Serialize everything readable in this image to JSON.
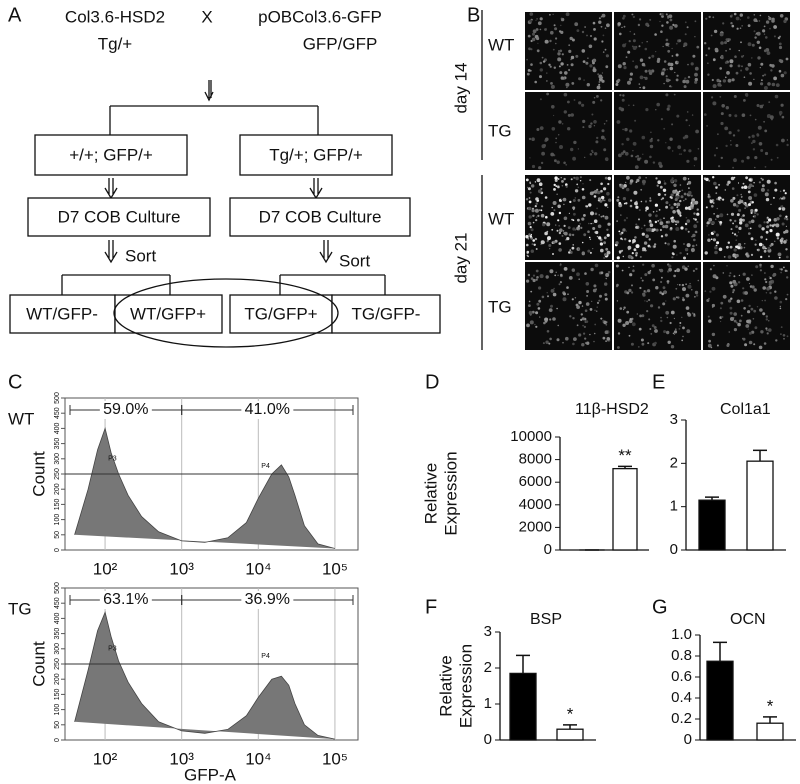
{
  "panel_a": {
    "label": "A",
    "parent1": [
      "Col3.6-HSD2",
      "Tg/+"
    ],
    "cross": "X",
    "parent2": [
      "pOBCol3.6-GFP",
      "GFP/GFP"
    ],
    "genotypes": [
      "+/+; GFP/+",
      "Tg/+; GFP/+"
    ],
    "culture": [
      "D7 COB Culture",
      "D7 COB Culture"
    ],
    "step": [
      "Sort",
      "Sort"
    ],
    "fractions": [
      "WT/GFP-",
      "WT/GFP+",
      "TG/GFP+",
      "TG/GFP-"
    ]
  },
  "panel_b": {
    "label": "B",
    "timepoints": [
      "day 14",
      "day 21"
    ],
    "rows": [
      "WT",
      "TG",
      "WT",
      "TG"
    ]
  },
  "chart_data": [
    {
      "type": "area",
      "panel": "C",
      "sample": "WT",
      "ylabel": "Count",
      "color": "#777777",
      "xscale": "log",
      "x": [
        40,
        60,
        80,
        100,
        120,
        150,
        200,
        300,
        500,
        1000,
        2000,
        4000,
        7000,
        10000,
        15000,
        20000,
        25000,
        30000,
        40000,
        60000,
        100000
      ],
      "values": [
        50,
        200,
        330,
        400,
        320,
        250,
        180,
        110,
        60,
        30,
        25,
        40,
        90,
        170,
        250,
        280,
        240,
        180,
        80,
        20,
        5
      ],
      "xlim": [
        30,
        200000
      ],
      "xticks": [
        {
          "value": 100,
          "label": "10²"
        },
        {
          "value": 1000,
          "label": "10³"
        },
        {
          "value": 10000,
          "label": "10⁴"
        },
        {
          "value": 100000,
          "label": "10⁵"
        }
      ],
      "ylim": [
        0,
        500
      ],
      "yticks": [
        0,
        50,
        100,
        150,
        200,
        250,
        300,
        350,
        400,
        450,
        500
      ],
      "gates": {
        "values": [
          59.0,
          41.0
        ],
        "value_labels": [
          "59.0%",
          "41.0%"
        ]
      },
      "gate_names": [
        "P3",
        "P4"
      ]
    },
    {
      "type": "area",
      "sample": "TG",
      "ylabel": "Count",
      "xlabel": "GFP-A",
      "color": "#777777",
      "xscale": "log",
      "x": [
        40,
        60,
        80,
        100,
        120,
        150,
        200,
        300,
        500,
        1000,
        2000,
        4000,
        7000,
        10000,
        15000,
        20000,
        25000,
        30000,
        40000,
        60000,
        100000
      ],
      "values": [
        60,
        230,
        360,
        420,
        340,
        260,
        190,
        120,
        60,
        30,
        22,
        35,
        80,
        140,
        200,
        210,
        180,
        120,
        50,
        15,
        3
      ],
      "xlim": [
        30,
        200000
      ],
      "xticks": [
        {
          "value": 100,
          "label": "10²"
        },
        {
          "value": 1000,
          "label": "10³"
        },
        {
          "value": 10000,
          "label": "10⁴"
        },
        {
          "value": 100000,
          "label": "10⁵"
        }
      ],
      "ylim": [
        0,
        500
      ],
      "yticks": [
        0,
        50,
        100,
        150,
        200,
        250,
        300,
        350,
        400,
        450,
        500
      ],
      "gates": {
        "values": [
          63.1,
          36.9
        ],
        "value_labels": [
          "63.1%",
          "36.9%"
        ]
      },
      "gate_names": [
        "P3",
        "P4"
      ]
    },
    {
      "type": "bar",
      "panel": "D",
      "title": "11β-HSD2",
      "ylabel": [
        "Relative",
        "Expression"
      ],
      "categories": [
        null,
        null
      ],
      "values": [
        1,
        7200
      ],
      "errors": [
        0,
        200
      ],
      "colors": [
        "#000000",
        "#ffffff"
      ],
      "significance": [
        null,
        "**"
      ],
      "ylim": [
        0,
        10000
      ],
      "yticks": [
        0,
        2000,
        4000,
        6000,
        8000,
        10000
      ]
    },
    {
      "type": "bar",
      "panel": "E",
      "title": "Col1a1",
      "categories": [
        null,
        null
      ],
      "values": [
        1.15,
        2.05
      ],
      "errors": [
        0.07,
        0.25
      ],
      "colors": [
        "#000000",
        "#ffffff"
      ],
      "ylim": [
        0,
        3
      ],
      "yticks": [
        0,
        1,
        2,
        3
      ]
    },
    {
      "type": "bar",
      "panel": "F",
      "title": "BSP",
      "ylabel": [
        "Relative",
        "Expression"
      ],
      "categories": [
        null,
        null
      ],
      "values": [
        1.85,
        0.3
      ],
      "errors": [
        0.5,
        0.12
      ],
      "colors": [
        "#000000",
        "#ffffff"
      ],
      "significance": [
        null,
        "*"
      ],
      "ylim": [
        0,
        3
      ],
      "yticks": [
        0,
        1,
        2,
        3
      ]
    },
    {
      "type": "bar",
      "panel": "G",
      "title": "OCN",
      "categories": [
        null,
        null
      ],
      "values": [
        0.75,
        0.16
      ],
      "errors": [
        0.18,
        0.06
      ],
      "colors": [
        "#000000",
        "#ffffff"
      ],
      "significance": [
        null,
        "*"
      ],
      "ylim": [
        0,
        1
      ],
      "yticks": [
        0,
        0.2,
        0.4,
        0.6,
        0.8,
        {
          "value": 1,
          "label": "1.0"
        }
      ]
    }
  ]
}
